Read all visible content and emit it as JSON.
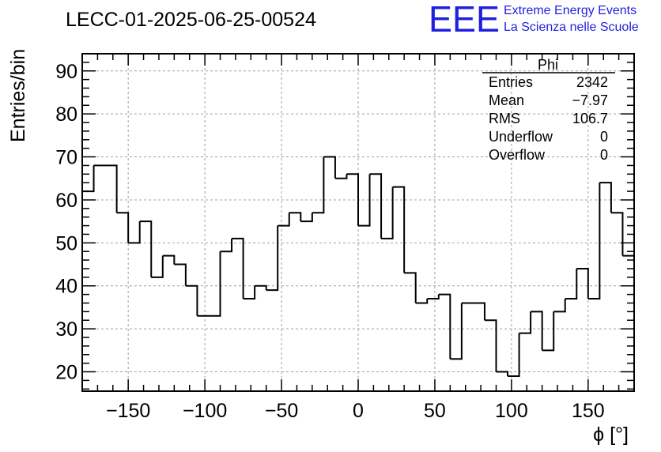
{
  "chart_data": {
    "type": "histogram",
    "title": "LECC-01-2025-06-25-00524",
    "xlabel": "ϕ [°]",
    "ylabel": "Entries/bin",
    "xlim": [
      -180,
      180
    ],
    "ylim": [
      15.5,
      94
    ],
    "bin_width": 7.5,
    "x_ticks": [
      -150,
      -100,
      -50,
      0,
      50,
      100,
      150
    ],
    "x_tick_labels": [
      "−150",
      "−100",
      "−50",
      "0",
      "50",
      "100",
      "150"
    ],
    "y_ticks": [
      20,
      30,
      40,
      50,
      60,
      70,
      80,
      90
    ],
    "y_tick_labels": [
      "20",
      "30",
      "40",
      "50",
      "60",
      "70",
      "80",
      "90"
    ],
    "grid": true,
    "bin_edges": [
      -180,
      -172.5,
      -157.5,
      -150,
      -142.5,
      -135,
      -127.5,
      -120,
      -112.5,
      -105,
      -90,
      -82.5,
      -75,
      -67.5,
      -60,
      -52.5,
      -45,
      -37.5,
      -30,
      -22.5,
      -15,
      -7.5,
      0,
      7.5,
      15,
      22.5,
      30,
      37.5,
      45,
      52.5,
      60,
      67.5,
      82.5,
      90,
      97.5,
      105,
      112.5,
      120,
      127.5,
      135,
      142.5,
      150,
      157.5,
      165,
      172.5
    ],
    "values": [
      62,
      68,
      57,
      50,
      55,
      42,
      47,
      45,
      40,
      33,
      48,
      51,
      37,
      40,
      39,
      54,
      57,
      55,
      57,
      70,
      65,
      66,
      54,
      66,
      51,
      63,
      43,
      36,
      37,
      38,
      23,
      36,
      32,
      20,
      19,
      29,
      34,
      25,
      34,
      37,
      44,
      37,
      64,
      57,
      47
    ],
    "stats": {
      "title": "Phi",
      "rows": [
        {
          "label": "Entries",
          "value": "2342"
        },
        {
          "label": "Mean",
          "value": "−7.97"
        },
        {
          "label": "RMS",
          "value": "106.7"
        },
        {
          "label": "Underflow",
          "value": "0"
        },
        {
          "label": "Overflow",
          "value": "0"
        }
      ]
    }
  },
  "logo": {
    "mark": "EEE",
    "line1": "Extreme Energy Events",
    "line2": "La Scienza nelle Scuole",
    "color": "#1f1fe0"
  },
  "colors": {
    "line": "#000000",
    "grid": "#a0a0a0",
    "frame": "#000000"
  }
}
